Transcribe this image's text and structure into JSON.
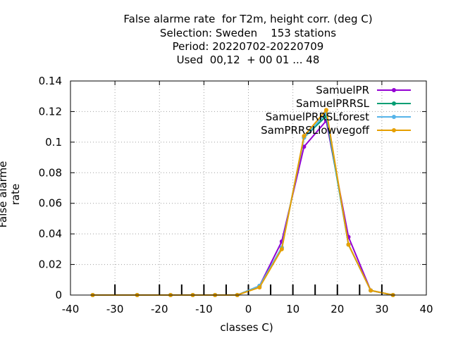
{
  "title_lines": [
    "False alarme rate  for T2m, height corr. (deg C)",
    "Selection: Sweden    153 stations",
    "Period: 20220702-20220709",
    "Used  00,12  + 00 01 ... 48"
  ],
  "chart_data": {
    "type": "line",
    "xlabel": "classes C)",
    "ylabel": "False alarme rate",
    "xlim": [
      -40,
      40
    ],
    "ylim": [
      0,
      0.14
    ],
    "x_ticks": [
      -40,
      -30,
      -20,
      -10,
      0,
      10,
      20,
      30,
      40
    ],
    "y_ticks": [
      0,
      0.02,
      0.04,
      0.06,
      0.08,
      0.1,
      0.12,
      0.14
    ],
    "x_tick_labels": [
      "-40",
      "-30",
      "-20",
      "-10",
      "0",
      "10",
      "20",
      "30",
      "40"
    ],
    "y_tick_labels": [
      "0",
      "0.02",
      "0.04",
      "0.06",
      "0.08",
      "0.1",
      "0.12",
      "0.14"
    ],
    "grid": true,
    "legend_position": "top-right",
    "class_bounds": [
      -30,
      -20,
      -15,
      -10,
      -5,
      0,
      5,
      10,
      15,
      20,
      25,
      30
    ],
    "x": [
      -35,
      -25,
      -17.5,
      -12.5,
      -7.5,
      -2.5,
      2.5,
      7.5,
      12.5,
      17.5,
      22.5,
      27.5,
      32.5
    ],
    "series": [
      {
        "name": "SamuelPR",
        "color": "#9400d3",
        "values": [
          0,
          0,
          0,
          0,
          0,
          0,
          0.006,
          0.035,
          0.097,
          0.114,
          0.038,
          0.003,
          0
        ]
      },
      {
        "name": "SamuelPR_R SL",
        "color": "#009e73",
        "values": [
          0,
          0,
          0,
          0,
          0,
          0,
          0.006,
          0.031,
          0.103,
          0.117,
          0.033,
          0.003,
          0
        ]
      },
      {
        "name": "SamuelPR_R SL_forest",
        "color": "#56b4e9",
        "values": [
          0,
          0,
          0,
          0,
          0,
          0,
          0.006,
          0.031,
          0.103,
          0.119,
          0.033,
          0.003,
          0
        ]
      },
      {
        "name": "SamPR_R SL_lowvegoff",
        "color": "#e69f00",
        "values": [
          0,
          0,
          0,
          0,
          0,
          0,
          0.005,
          0.03,
          0.104,
          0.121,
          0.033,
          0.003,
          0
        ]
      }
    ]
  }
}
